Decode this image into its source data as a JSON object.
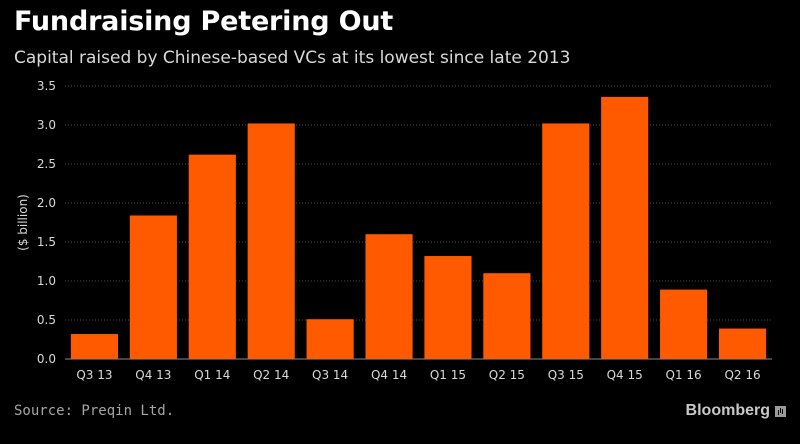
{
  "header": {
    "title": "Fundraising Petering Out",
    "subtitle": "Capital raised by Chinese-based VCs at its lowest since late 2013"
  },
  "footer": {
    "source": "Source: Preqin Ltd.",
    "brand": "Bloomberg"
  },
  "colors": {
    "bar": "#ff5a00",
    "grid": "#4a4a4a",
    "text": "#d9d9d9",
    "background": "#000000"
  },
  "chart_data": {
    "type": "bar",
    "title": "Fundraising Petering Out",
    "subtitle": "Capital raised by Chinese-based VCs at its lowest since late 2013",
    "xlabel": "",
    "ylabel": "($ billion)",
    "ylim": [
      0,
      3.5
    ],
    "yticks": [
      "0.0",
      "0.5",
      "1.0",
      "1.5",
      "2.0",
      "2.5",
      "3.0",
      "3.5"
    ],
    "grid": true,
    "categories": [
      "Q3 13",
      "Q4 13",
      "Q1 14",
      "Q2 14",
      "Q3 14",
      "Q4 14",
      "Q1 15",
      "Q2 15",
      "Q3 15",
      "Q4 15",
      "Q1 16",
      "Q2 16"
    ],
    "values": [
      0.32,
      1.84,
      2.62,
      3.02,
      0.51,
      1.6,
      1.32,
      1.1,
      3.02,
      3.36,
      0.89,
      0.39
    ]
  }
}
